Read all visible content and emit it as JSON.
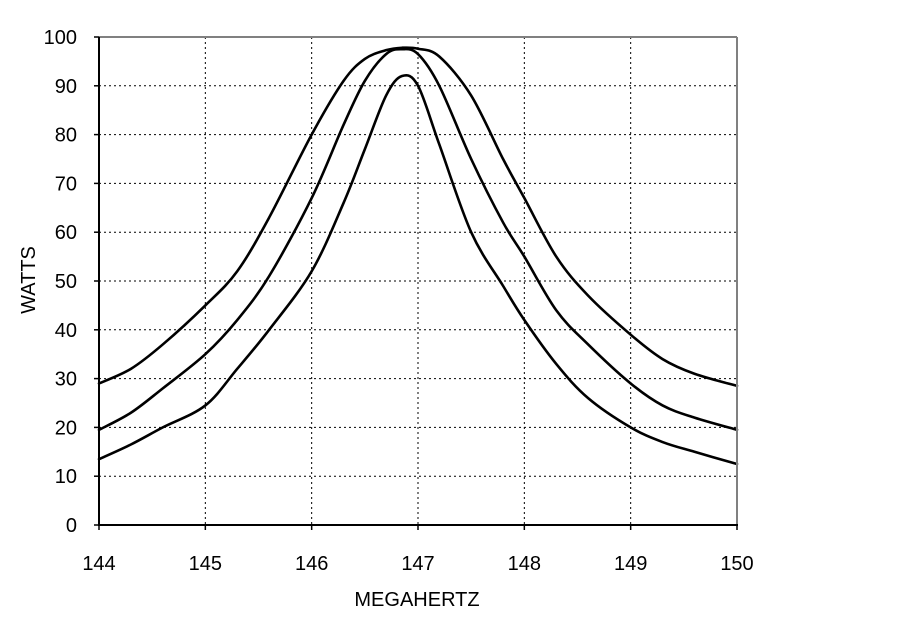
{
  "chart_data": {
    "type": "line",
    "title": "",
    "xlabel": "MEGAHERTZ",
    "ylabel": "WATTS",
    "xlim": [
      144,
      150
    ],
    "ylim": [
      0,
      100
    ],
    "x_ticks": [
      144,
      145,
      146,
      147,
      148,
      149,
      150
    ],
    "y_ticks": [
      0,
      10,
      20,
      30,
      40,
      50,
      60,
      70,
      80,
      90,
      100
    ],
    "grid": true,
    "grid_style": "dotted",
    "line_color": "#000000",
    "series": [
      {
        "x": [
          144.0,
          144.3,
          144.6,
          145.0,
          145.3,
          145.6,
          146.0,
          146.3,
          146.5,
          146.7,
          146.85,
          147.0,
          147.2,
          147.5,
          147.8,
          148.0,
          148.3,
          148.6,
          149.0,
          149.3,
          149.6,
          150.0
        ],
        "values": [
          29,
          32,
          37,
          45,
          52,
          63,
          80,
          91,
          95.5,
          97.3,
          97.8,
          97.6,
          96,
          88,
          75,
          67,
          55,
          47,
          39,
          34,
          31,
          28.5
        ]
      },
      {
        "x": [
          144.0,
          144.3,
          144.6,
          145.0,
          145.3,
          145.6,
          146.0,
          146.3,
          146.5,
          146.7,
          146.85,
          147.0,
          147.2,
          147.5,
          147.8,
          148.0,
          148.3,
          148.6,
          149.0,
          149.3,
          149.6,
          150.0
        ],
        "values": [
          19.5,
          23,
          28,
          35,
          42,
          51,
          67,
          82,
          91,
          96.5,
          97.5,
          96.5,
          90,
          75,
          62,
          55,
          44,
          37,
          29,
          24.5,
          22,
          19.5
        ]
      },
      {
        "x": [
          144.0,
          144.3,
          144.6,
          145.0,
          145.3,
          145.6,
          146.0,
          146.3,
          146.5,
          146.7,
          146.85,
          147.0,
          147.2,
          147.5,
          147.8,
          148.0,
          148.3,
          148.6,
          149.0,
          149.3,
          149.6,
          150.0
        ],
        "values": [
          13.5,
          16.5,
          20,
          24.5,
          32,
          40,
          52,
          66,
          77,
          88,
          92,
          90,
          78,
          60,
          49,
          42,
          33,
          26,
          20,
          17,
          15,
          12.5
        ]
      }
    ]
  }
}
